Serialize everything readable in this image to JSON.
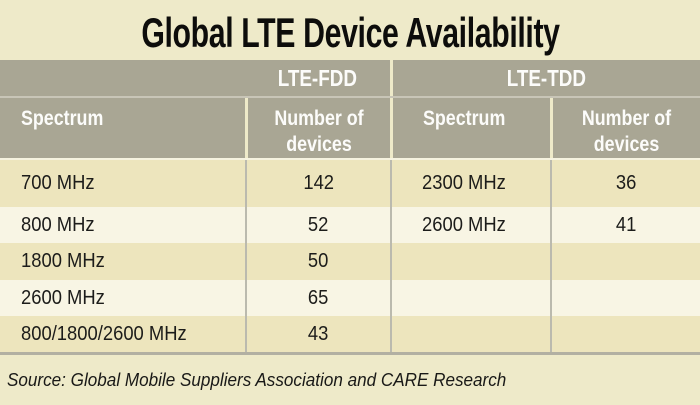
{
  "title": "Global LTE Device Availability",
  "table": {
    "groups": [
      "LTE-FDD",
      "LTE-TDD"
    ],
    "columns": [
      "Spectrum",
      "Number of devices",
      "Spectrum",
      "Number of devices"
    ],
    "rows": [
      [
        "700 MHz",
        "142",
        "2300 MHz",
        "36"
      ],
      [
        "800 MHz",
        "52",
        "2600 MHz",
        "41"
      ],
      [
        "1800 MHz",
        "50",
        "",
        ""
      ],
      [
        "2600 MHz",
        "65",
        "",
        ""
      ],
      [
        "800/1800/2600 MHz",
        "43",
        "",
        ""
      ]
    ]
  },
  "source": "Source: Global Mobile Suppliers Association and CARE Research",
  "colors": {
    "background_cream": "#eeeac9",
    "header_gray": "#a9a694",
    "row_dark": "#ede5bd",
    "row_light": "#f8f5e4",
    "divider_gray": "#bbbaae",
    "header_text": "#fcfcfa",
    "body_text": "#1c1c1a"
  },
  "chart_data": {
    "type": "table",
    "title": "Global LTE Device Availability",
    "groups": [
      "LTE-FDD",
      "LTE-TDD"
    ],
    "columns": [
      "Spectrum",
      "Number of devices",
      "Spectrum",
      "Number of devices"
    ],
    "fdd": {
      "categories": [
        "700 MHz",
        "800 MHz",
        "1800 MHz",
        "2600 MHz",
        "800/1800/2600 MHz"
      ],
      "values": [
        142,
        52,
        50,
        65,
        43
      ]
    },
    "tdd": {
      "categories": [
        "2300 MHz",
        "2600 MHz"
      ],
      "values": [
        36,
        41
      ]
    },
    "source": "Source: Global Mobile Suppliers Association and CARE Research"
  }
}
